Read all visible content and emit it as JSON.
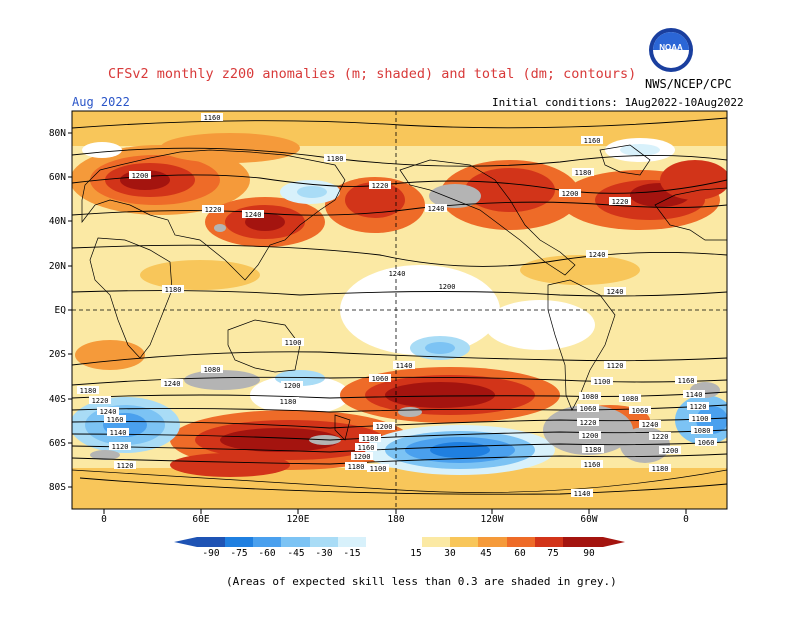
{
  "header": {
    "title": "CFSv2 monthly z200 anomalies (m; shaded) and total (dm; contours)",
    "month": "Aug 2022",
    "initial_conditions": "Initial conditions: 1Aug2022-10Aug2022",
    "agency": "NWS/NCEP/CPC",
    "logo_text": "NOAA"
  },
  "map": {
    "lat_labels": [
      "80N",
      "60N",
      "40N",
      "20N",
      "EQ",
      "20S",
      "40S",
      "60S",
      "80S"
    ],
    "lon_labels": [
      "0",
      "60E",
      "120E",
      "180",
      "120W",
      "60W",
      "0"
    ],
    "contour_labels": [
      "1160",
      "1180",
      "1200",
      "1220",
      "1240",
      "1240",
      "1180",
      "1200",
      "1220",
      "1240",
      "1240",
      "1180",
      "1200",
      "1220",
      "1240",
      "1160",
      "1180",
      "1200",
      "1220",
      "1240",
      "1240",
      "1180",
      "1160",
      "1140",
      "1120",
      "1100",
      "1080",
      "1060",
      "1200",
      "1180",
      "1160",
      "1200",
      "1180",
      "1140",
      "1120",
      "1100",
      "1080",
      "1060",
      "1220",
      "1200",
      "1180",
      "1160",
      "1140",
      "1120",
      "1100",
      "1080",
      "1060",
      "1240",
      "1220",
      "1200",
      "1180",
      "1160",
      "1140",
      "1120",
      "1100",
      "1080",
      "1060"
    ],
    "colors": {
      "neg90": "#1e53b4",
      "neg75": "#1f7fe0",
      "neg60": "#4aa0ee",
      "neg45": "#7cc3f4",
      "neg30": "#a9dcf6",
      "neg15": "#d8f1fb",
      "neutral": "#ffffff",
      "pos15": "#fbe9a4",
      "pos30": "#f8c65a",
      "pos45": "#f59a3a",
      "pos60": "#ee6b28",
      "pos75": "#d23419",
      "pos90": "#a4140f",
      "grey": "#b4b4b4"
    }
  },
  "colorbar": {
    "labels": [
      "-90",
      "-75",
      "-60",
      "-45",
      "-30",
      "-15",
      "15",
      "30",
      "45",
      "60",
      "75",
      "90"
    ]
  },
  "footnote": "(Areas of expected skill less than 0.3 are shaded in grey.)"
}
